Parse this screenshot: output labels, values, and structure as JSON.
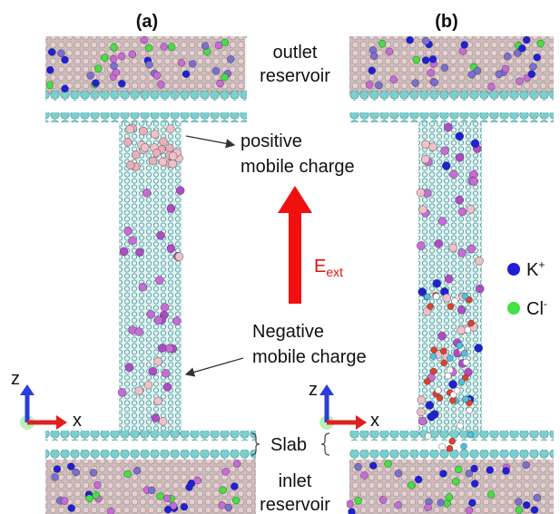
{
  "panels": [
    {
      "label": "(a)"
    },
    {
      "label": "(b)"
    }
  ],
  "annotations": {
    "outlet_reservoir": [
      "outlet",
      "reservoir"
    ],
    "positive": [
      "positive",
      "mobile charge"
    ],
    "field": {
      "symbol": "E",
      "subscript": "ext"
    },
    "negative": [
      "Negative",
      "mobile charge"
    ],
    "slab": "Slab",
    "inlet_reservoir": [
      "inlet",
      "reservoir"
    ]
  },
  "axes": [
    {
      "z": "z",
      "x": "x"
    },
    {
      "z": "z",
      "x": "x"
    }
  ],
  "legend": [
    {
      "symbol": "K",
      "charge": "+",
      "color": "#1f1fd8"
    },
    {
      "symbol": "Cl",
      "charge": "-",
      "color": "#44e044"
    }
  ]
}
